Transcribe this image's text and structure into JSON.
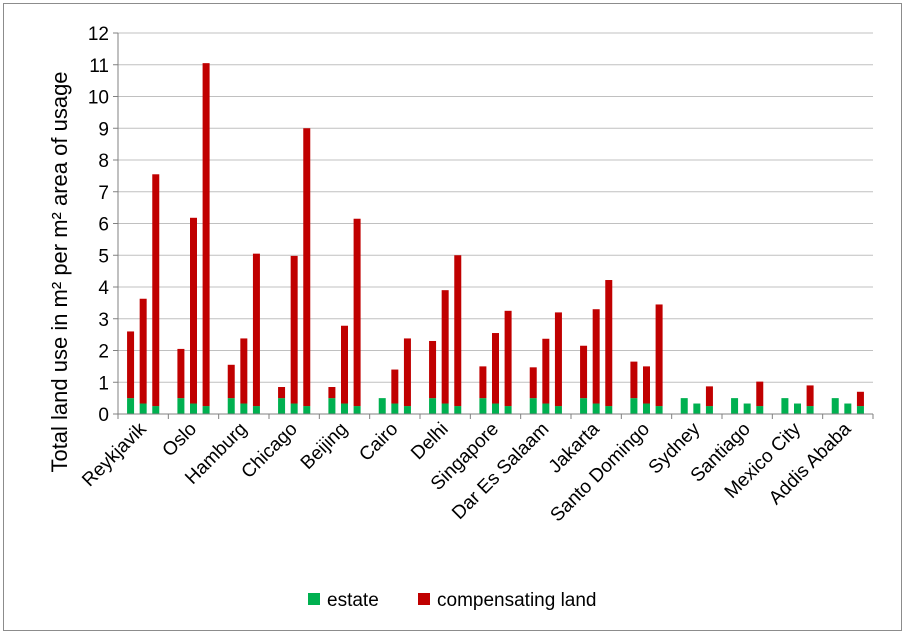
{
  "colors": {
    "estate": "#00b050",
    "compensating": "#c00000",
    "grid": "#c0c0c0",
    "axis": "#808080"
  },
  "chart_data": {
    "type": "bar",
    "stacked": true,
    "title": "",
    "xlabel": "",
    "ylabel": "Total land use in m² per m² area of usage",
    "ylim": [
      0,
      12
    ],
    "yticks": [
      0,
      1,
      2,
      3,
      4,
      5,
      6,
      7,
      8,
      9,
      10,
      11,
      12
    ],
    "grid": true,
    "legend_position": "bottom",
    "bars_per_category": 3,
    "categories": [
      "Reykjavik",
      "Oslo",
      "Hamburg",
      "Chicago",
      "Beijing",
      "Cairo",
      "Delhi",
      "Singapore",
      "Dar Es Salaam",
      "Jakarta",
      "Santo Domingo",
      "Sydney",
      "Santiago",
      "Mexico City",
      "Addis Ababa"
    ],
    "series": [
      {
        "name": "estate",
        "values": [
          [
            0.5,
            0.33,
            0.25
          ],
          [
            0.5,
            0.33,
            0.25
          ],
          [
            0.5,
            0.33,
            0.25
          ],
          [
            0.5,
            0.33,
            0.25
          ],
          [
            0.5,
            0.33,
            0.25
          ],
          [
            0.5,
            0.33,
            0.25
          ],
          [
            0.5,
            0.33,
            0.25
          ],
          [
            0.5,
            0.33,
            0.25
          ],
          [
            0.5,
            0.33,
            0.25
          ],
          [
            0.5,
            0.33,
            0.25
          ],
          [
            0.5,
            0.33,
            0.25
          ],
          [
            0.5,
            0.33,
            0.25
          ],
          [
            0.5,
            0.33,
            0.25
          ],
          [
            0.5,
            0.33,
            0.25
          ],
          [
            0.5,
            0.33,
            0.25
          ]
        ]
      },
      {
        "name": "compensating land",
        "values": [
          [
            2.1,
            3.3,
            7.3
          ],
          [
            1.55,
            5.85,
            10.8
          ],
          [
            1.05,
            2.05,
            4.8
          ],
          [
            0.35,
            4.65,
            8.75
          ],
          [
            0.35,
            2.45,
            5.9
          ],
          [
            0.0,
            1.07,
            2.13
          ],
          [
            1.8,
            3.57,
            4.75
          ],
          [
            1.0,
            2.22,
            3.0
          ],
          [
            0.97,
            2.04,
            2.95
          ],
          [
            1.65,
            2.97,
            3.97
          ],
          [
            1.15,
            1.17,
            3.2
          ],
          [
            0.0,
            0.0,
            0.62
          ],
          [
            0.0,
            0.0,
            0.77
          ],
          [
            0.0,
            0.0,
            0.65
          ],
          [
            0.0,
            0.0,
            0.45
          ]
        ]
      }
    ]
  },
  "legend": {
    "estate": "estate",
    "compensating": "compensating land"
  }
}
